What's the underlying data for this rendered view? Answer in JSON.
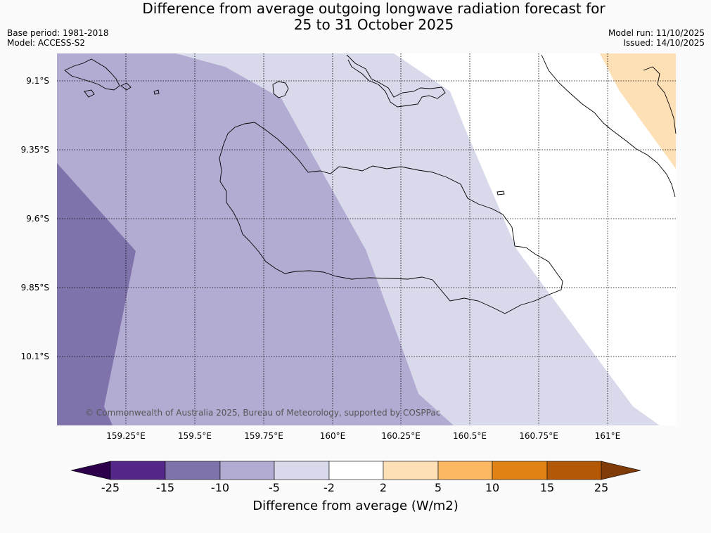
{
  "header": {
    "title_line1": "Difference from average outgoing longwave radiation forecast for",
    "title_line2": "25 to 31 October 2025",
    "base_period": "Base period: 1981-2018",
    "model": "Model: ACCESS-S2",
    "model_run": "Model run: 11/10/2025",
    "issued": "Issued: 14/10/2025"
  },
  "map": {
    "y_ticks": [
      "9.1°S",
      "9.35°S",
      "9.6°S",
      "9.85°S",
      "10.1°S"
    ],
    "x_ticks": [
      "159.25°E",
      "159.5°E",
      "159.75°E",
      "160°E",
      "160.25°E",
      "160.5°E",
      "160.75°E",
      "161°E"
    ],
    "copyright": "© Commonwealth of Australia 2025, Bureau of Meteorology, supported by COSPPac",
    "lat_range": [
      -10.35,
      -9.0
    ],
    "lon_range": [
      159.0,
      161.25
    ]
  },
  "colorbar": {
    "ticks": [
      "-25",
      "-15",
      "-10",
      "-5",
      "-2",
      "2",
      "5",
      "10",
      "15",
      "25"
    ],
    "colors": [
      "#2d004b",
      "#542788",
      "#8073ac",
      "#b2abd2",
      "#d8daeb",
      "#ffffff",
      "#fee0b6",
      "#fdb863",
      "#e08214",
      "#b35806",
      "#7f3b08"
    ],
    "label": "Difference from average (W/m2)"
  }
}
